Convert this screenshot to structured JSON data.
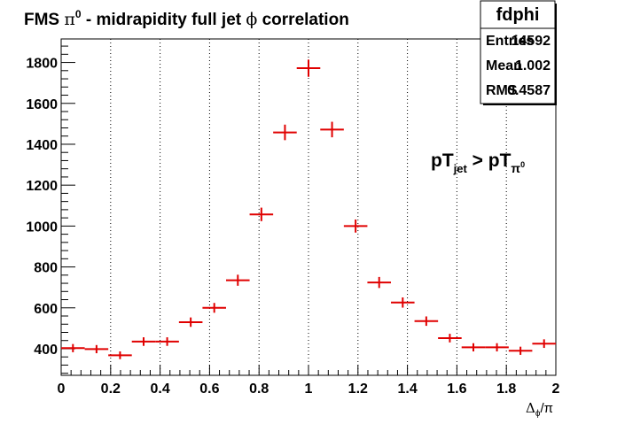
{
  "chart_data": {
    "type": "scatter",
    "title": {
      "prefix": "FMS ",
      "pi": "π",
      "pi_sup": "0",
      "middle": " - midrapidity full jet ",
      "phi": "ϕ",
      "suffix": " correlation"
    },
    "stats": {
      "name": "fdphi",
      "rows": [
        {
          "label": "Entries",
          "value": "14592"
        },
        {
          "label": "Mean",
          "value": "1.002"
        },
        {
          "label": "RMS",
          "value": "0.4587"
        }
      ]
    },
    "annotation": {
      "main1": "pT",
      "sub1": "jet",
      "main2": " > pT",
      "sub2": "π",
      "sub2_sup": "0"
    },
    "xlabel": {
      "main": "Δ",
      "sub": "ϕ",
      "tail": "/π"
    },
    "xlim": [
      0,
      2
    ],
    "ylim": [
      270,
      1915
    ],
    "xticks": [
      0,
      0.2,
      0.4,
      0.6,
      0.8,
      1,
      1.2,
      1.4,
      1.6,
      1.8,
      2
    ],
    "xtick_labels": [
      "0",
      "0.2",
      "0.4",
      "0.6",
      "0.8",
      "1",
      "1.2",
      "1.4",
      "1.6",
      "1.8",
      "2"
    ],
    "yticks": [
      400,
      600,
      800,
      1000,
      1200,
      1400,
      1600,
      1800
    ],
    "ytick_labels": [
      "400",
      "600",
      "800",
      "1000",
      "1200",
      "1400",
      "1600",
      "1800"
    ],
    "bin_width": 0.0952,
    "grid": "vertical-dotted",
    "marker_color": "#e00000",
    "x": [
      0.0476,
      0.1429,
      0.2381,
      0.3333,
      0.4286,
      0.5238,
      0.619,
      0.7143,
      0.8095,
      0.9048,
      1.0,
      1.0952,
      1.1905,
      1.2857,
      1.381,
      1.4762,
      1.5714,
      1.6667,
      1.7619,
      1.8571,
      1.9524
    ],
    "y": [
      403,
      398,
      368,
      435,
      435,
      530,
      600,
      735,
      1057,
      1458,
      1772,
      1472,
      1000,
      724,
      626,
      535,
      452,
      407,
      407,
      390,
      425
    ],
    "yerr": [
      20,
      20,
      19,
      21,
      21,
      23,
      24,
      27,
      33,
      38,
      42,
      38,
      32,
      27,
      25,
      23,
      21,
      20,
      20,
      20,
      21
    ]
  }
}
